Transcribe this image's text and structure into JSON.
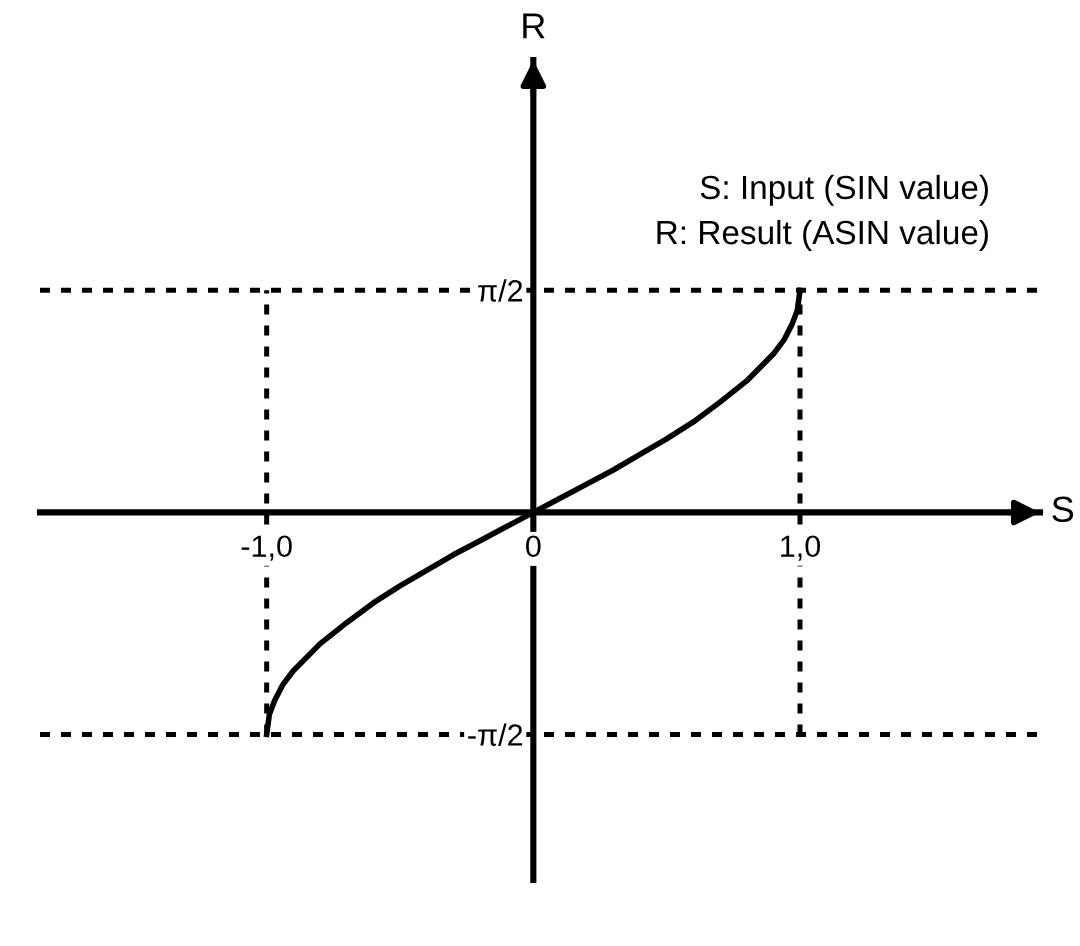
{
  "chart_data": {
    "type": "line",
    "xlabel": "S",
    "ylabel": "R",
    "x": [
      -1,
      -0.99,
      -0.97,
      -0.94,
      -0.9,
      -0.8,
      -0.7,
      -0.6,
      -0.5,
      -0.4,
      -0.3,
      -0.2,
      -0.1,
      0,
      0.1,
      0.2,
      0.3,
      0.4,
      0.5,
      0.6,
      0.7,
      0.8,
      0.9,
      0.94,
      0.97,
      0.99,
      1
    ],
    "series": [
      {
        "color": "#000000",
        "values": [
          -1.57,
          -1.43,
          -1.33,
          -1.22,
          -1.12,
          -0.93,
          -0.78,
          -0.64,
          -0.52,
          -0.41,
          -0.3,
          -0.2,
          -0.1,
          0,
          0.1,
          0.2,
          0.3,
          0.41,
          0.52,
          0.64,
          0.78,
          0.93,
          1.12,
          1.22,
          1.33,
          1.43,
          1.57
        ]
      }
    ],
    "xlim": [
      -1.85,
      1.9
    ],
    "ylim": [
      -2.6,
      3.2
    ],
    "xticks": [
      {
        "value": -1,
        "label": "-1,0"
      },
      0,
      {
        "value": 1,
        "label": "1,0"
      }
    ],
    "yticks": [
      {
        "value": -1.571,
        "label": "-π/2"
      },
      {
        "value": 1.571,
        "label": "π/2"
      }
    ],
    "ref_lines": [
      {
        "axis": "x",
        "value": -1,
        "line_style": "dotted",
        "color": "#000000"
      },
      {
        "axis": "x",
        "value": 1,
        "line_style": "dotted",
        "color": "#000000"
      },
      {
        "axis": "y",
        "value": 1.571,
        "line_style": "dotted",
        "color": "#000000"
      },
      {
        "axis": "y",
        "value": -1.571,
        "line_style": "dotted",
        "color": "#000000"
      }
    ],
    "annotations": [
      "S: Input (SIN value)",
      "R: Result (ASIN value)"
    ],
    "grid": false,
    "legend": false,
    "marker": "none",
    "line_style": "solid"
  }
}
